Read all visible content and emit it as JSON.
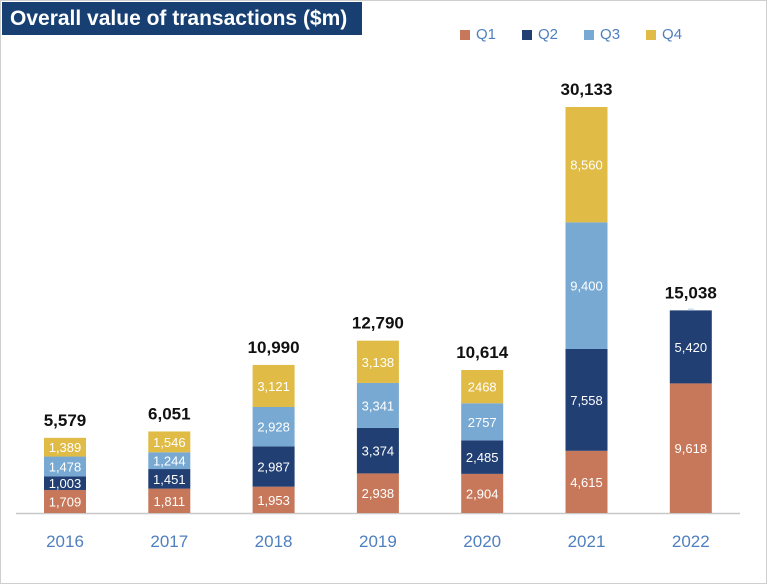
{
  "chart_data": {
    "type": "bar",
    "stacked": true,
    "title": "Overall value of transactions ($m)",
    "categories": [
      "2016",
      "2017",
      "2018",
      "2019",
      "2020",
      "2021",
      "2022"
    ],
    "series": [
      {
        "name": "Q1",
        "color": "#c8785a",
        "values": [
          1709,
          1811,
          1953,
          2938,
          2904,
          4615,
          9618
        ],
        "labels": [
          "1,709",
          "1,811",
          "1,953",
          "2,938",
          "2,904",
          "4,615",
          "9,618"
        ]
      },
      {
        "name": "Q2",
        "color": "#213f73",
        "values": [
          1003,
          1451,
          2987,
          3374,
          2485,
          7558,
          5420
        ],
        "labels": [
          "1,003",
          "1,451",
          "2,987",
          "3,374",
          "2,485",
          "7,558",
          "5,420"
        ]
      },
      {
        "name": "Q3",
        "color": "#78a9d3",
        "values": [
          1478,
          1244,
          2928,
          3341,
          2757,
          9400,
          0
        ],
        "labels": [
          "1,478",
          "1,244",
          "2,928",
          "3,341",
          "2757",
          "9,400",
          ""
        ]
      },
      {
        "name": "Q4",
        "color": "#e0bb45",
        "values": [
          1389,
          1546,
          3121,
          3138,
          2468,
          8560,
          0
        ],
        "labels": [
          "1,389",
          "1,546",
          "3,121",
          "3,138",
          "2468",
          "8,560",
          ""
        ]
      }
    ],
    "totals": [
      "5,579",
      "6,051",
      "10,990",
      "12,790",
      "10,614",
      "30,133",
      "15,038"
    ],
    "ylim": [
      0,
      30133
    ],
    "legend": "top-right",
    "grid": false,
    "xlabel": "",
    "ylabel": ""
  }
}
